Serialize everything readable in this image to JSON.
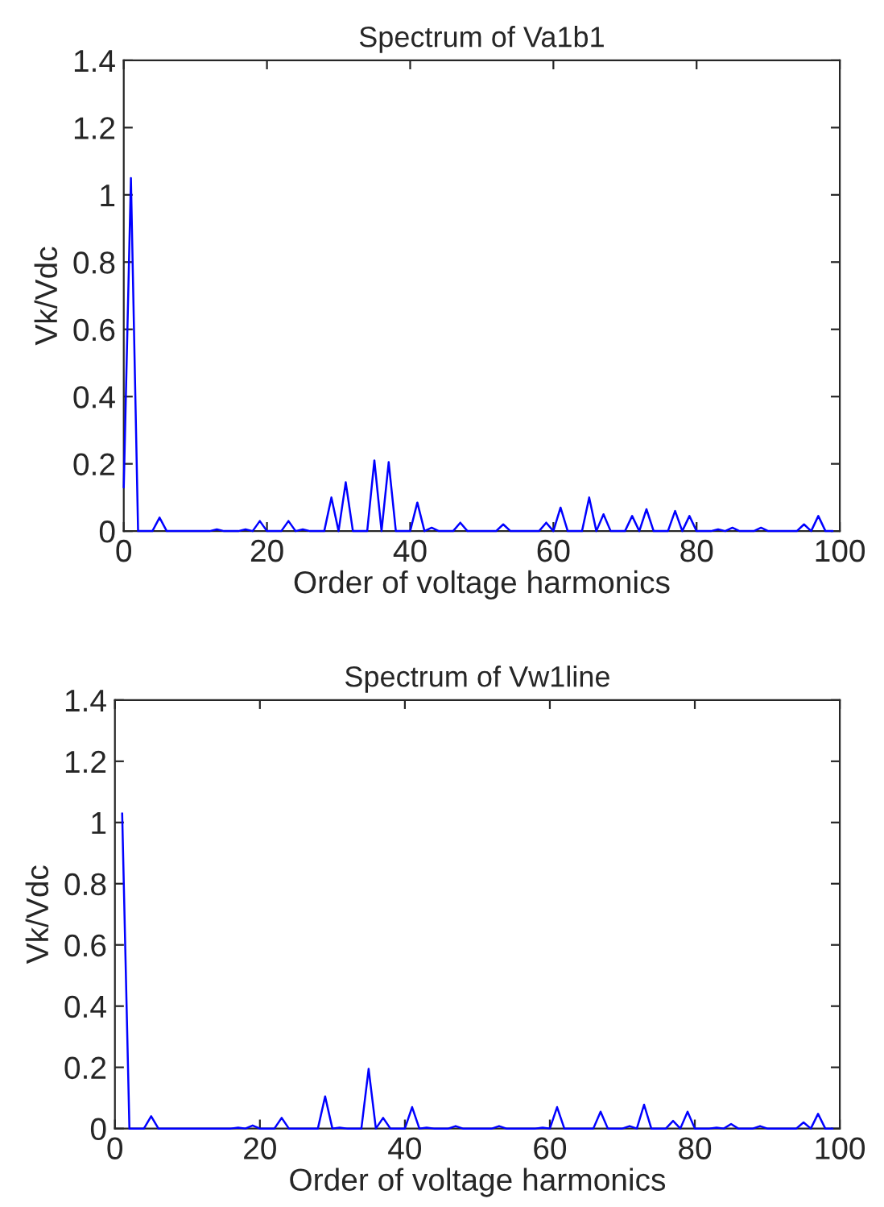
{
  "chart_data": [
    {
      "type": "line",
      "title": "Spectrum of Va1b1",
      "xlabel": "Order of voltage harmonics",
      "ylabel": "Vk/Vdc",
      "xlim": [
        0,
        100
      ],
      "ylim": [
        0,
        1.4
      ],
      "xticks": [
        0,
        20,
        40,
        60,
        80,
        100
      ],
      "yticks": [
        0,
        0.2,
        0.4,
        0.6,
        0.8,
        1,
        1.2,
        1.4
      ],
      "grid": false,
      "legend": false,
      "marker": "none",
      "line_style": "solid",
      "series": [
        {
          "color": "#0000ff",
          "x": [
            0,
            1,
            2,
            4,
            5,
            6,
            12,
            13,
            14,
            16,
            17,
            18,
            19,
            20,
            22,
            23,
            24,
            25,
            26,
            28,
            29,
            30,
            31,
            32,
            34,
            35,
            36,
            37,
            38,
            40,
            41,
            42,
            43,
            44,
            46,
            47,
            48,
            52,
            53,
            54,
            58,
            59,
            60,
            61,
            62,
            64,
            65,
            66,
            67,
            68,
            70,
            71,
            72,
            73,
            74,
            76,
            77,
            78,
            79,
            80,
            82,
            83,
            84,
            85,
            86,
            88,
            89,
            90,
            94,
            95,
            96,
            97,
            98,
            99
          ],
          "values": [
            0.13,
            1.05,
            0,
            0,
            0.04,
            0,
            0,
            0.005,
            0,
            0,
            0.005,
            0,
            0.03,
            0,
            0,
            0.03,
            0,
            0.005,
            0,
            0,
            0.1,
            0,
            0.145,
            0,
            0,
            0.21,
            0,
            0.205,
            0,
            0,
            0.085,
            0,
            0.01,
            0,
            0,
            0.025,
            0,
            0,
            0.02,
            0,
            0,
            0.025,
            0,
            0.07,
            0,
            0,
            0.1,
            0,
            0.05,
            0,
            0,
            0.045,
            0,
            0.065,
            0,
            0,
            0.06,
            0,
            0.045,
            0,
            0,
            0.005,
            0,
            0.01,
            0,
            0,
            0.01,
            0,
            0,
            0.02,
            0,
            0.045,
            0,
            0
          ]
        }
      ]
    },
    {
      "type": "line",
      "title": "Spectrum of Vw1line",
      "xlabel": "Order of voltage harmonics",
      "ylabel": "Vk/Vdc",
      "xlim": [
        0,
        100
      ],
      "ylim": [
        0,
        1.4
      ],
      "xticks": [
        0,
        20,
        40,
        60,
        80,
        100
      ],
      "yticks": [
        0,
        0.2,
        0.4,
        0.6,
        0.8,
        1,
        1.2,
        1.4
      ],
      "grid": false,
      "legend": false,
      "marker": "none",
      "line_style": "solid",
      "series": [
        {
          "color": "#0000ff",
          "x": [
            1,
            2,
            4,
            5,
            6,
            16,
            17,
            18,
            19,
            20,
            22,
            23,
            24,
            28,
            29,
            30,
            31,
            32,
            34,
            35,
            36,
            37,
            38,
            40,
            41,
            42,
            43,
            44,
            46,
            47,
            48,
            52,
            53,
            54,
            58,
            59,
            60,
            61,
            62,
            66,
            67,
            68,
            70,
            71,
            72,
            73,
            74,
            76,
            77,
            78,
            79,
            80,
            82,
            83,
            84,
            85,
            86,
            88,
            89,
            90,
            94,
            95,
            96,
            97,
            98,
            99
          ],
          "values": [
            1.03,
            0,
            0,
            0.04,
            0,
            0,
            0.003,
            0,
            0.01,
            0,
            0,
            0.035,
            0,
            0,
            0.105,
            0,
            0.003,
            0,
            0,
            0.195,
            0,
            0.035,
            0,
            0,
            0.07,
            0,
            0.003,
            0,
            0,
            0.008,
            0,
            0,
            0.008,
            0,
            0,
            0.003,
            0,
            0.07,
            0,
            0,
            0.055,
            0,
            0,
            0.008,
            0,
            0.078,
            0,
            0,
            0.025,
            0,
            0.055,
            0,
            0,
            0.003,
            0,
            0.015,
            0,
            0,
            0.008,
            0,
            0,
            0.02,
            0,
            0.048,
            0,
            0
          ]
        }
      ]
    }
  ]
}
